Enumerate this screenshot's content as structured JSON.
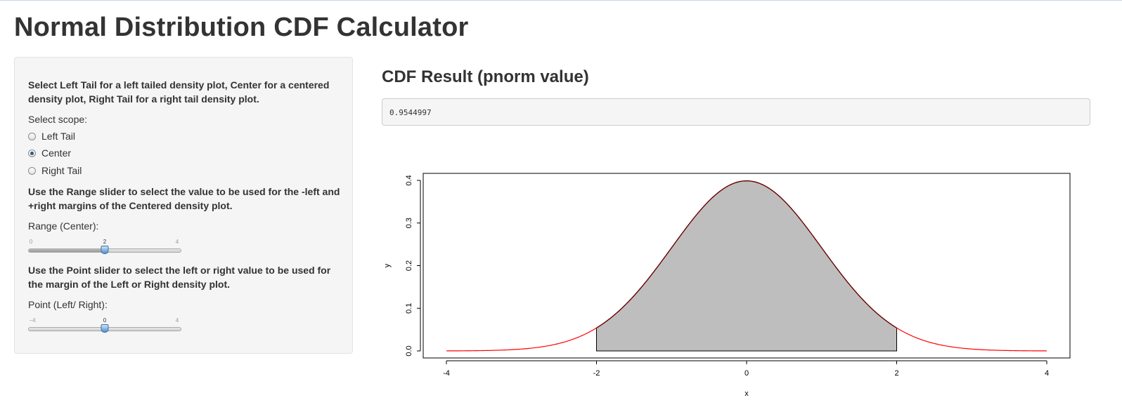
{
  "page": {
    "title": "Normal Distribution CDF Calculator"
  },
  "sidebar": {
    "instructions_scope": "Select Left Tail for a left tailed density plot, Center for a centered density plot, Right Tail for a right tail density plot.",
    "scope_label": "Select scope:",
    "scope_options": [
      {
        "label": "Left Tail",
        "checked": false
      },
      {
        "label": "Center",
        "checked": true
      },
      {
        "label": "Right Tail",
        "checked": false
      }
    ],
    "instructions_range": "Use the Range slider to select the value to be used for the -left and +right margins of the Centered density plot.",
    "range_label": "Range (Center):",
    "range_slider": {
      "min_label": "0",
      "max_label": "4",
      "value_label": "2",
      "min": 0,
      "max": 4,
      "value": 2
    },
    "instructions_point": "Use the Point slider to select the left or right value to be used for the margin of the Left or Right density plot.",
    "point_label": "Point (Left/ Right):",
    "point_slider": {
      "min_label": "−4",
      "max_label": "4",
      "value_label": "0",
      "min": -4,
      "max": 4,
      "value": 0
    }
  },
  "main": {
    "result_heading": "CDF Result (pnorm value)",
    "result_value": "0.9544997"
  },
  "chart_data": {
    "type": "area",
    "xlabel": "x",
    "ylabel": "y",
    "xlim": [
      -4,
      4
    ],
    "ylim": [
      0,
      0.4
    ],
    "x_ticks": [
      "-4",
      "-2",
      "0",
      "2",
      "4"
    ],
    "y_ticks": [
      "0.0",
      "0.1",
      "0.2",
      "0.3",
      "0.4"
    ],
    "series": [
      {
        "curve": "standard normal density",
        "x": [
          -4,
          -3,
          -2,
          -1,
          0,
          1,
          2,
          3,
          4
        ],
        "y": [
          0.0001,
          0.0044,
          0.054,
          0.242,
          0.399,
          0.242,
          0.054,
          0.0044,
          0.0001
        ],
        "color": "#ff0000"
      }
    ],
    "shaded_region": {
      "from": -2,
      "to": 2,
      "fill": "#bebebe"
    },
    "grid": false,
    "legend": "none"
  }
}
